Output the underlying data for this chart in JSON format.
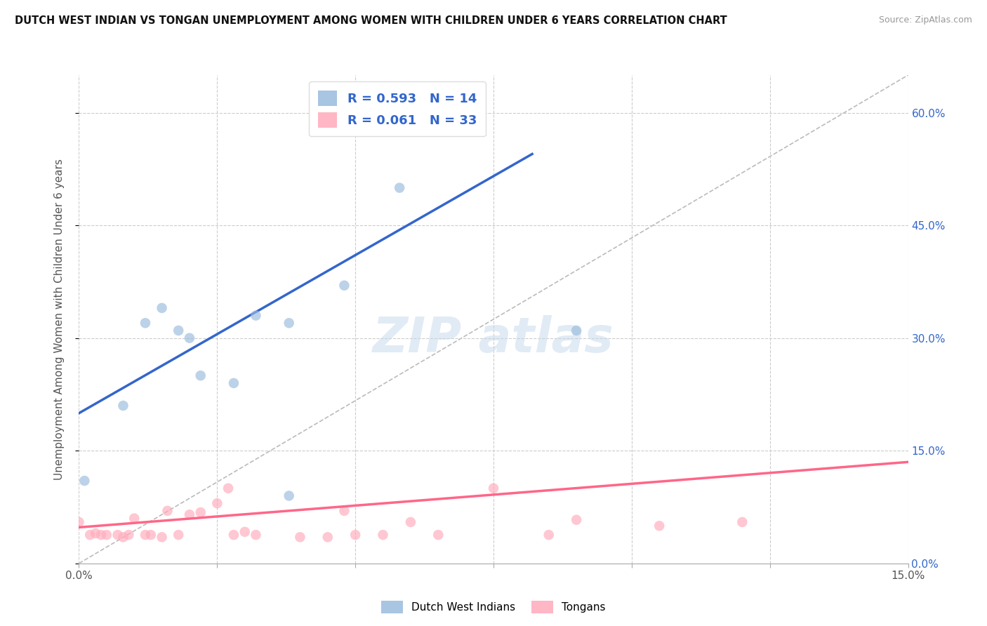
{
  "title": "DUTCH WEST INDIAN VS TONGAN UNEMPLOYMENT AMONG WOMEN WITH CHILDREN UNDER 6 YEARS CORRELATION CHART",
  "source": "Source: ZipAtlas.com",
  "ylabel": "Unemployment Among Women with Children Under 6 years",
  "xlim": [
    0.0,
    0.15
  ],
  "ylim": [
    0.0,
    0.65
  ],
  "xticks": [
    0.0,
    0.025,
    0.05,
    0.075,
    0.1,
    0.125,
    0.15
  ],
  "xtick_labels_bottom": [
    "0.0%",
    "",
    "",
    "",
    "",
    "",
    "15.0%"
  ],
  "yticks": [
    0.0,
    0.15,
    0.3,
    0.45,
    0.6
  ],
  "ytick_labels": [
    "0.0%",
    "15.0%",
    "30.0%",
    "45.0%",
    "60.0%"
  ],
  "blue_color": "#99bbdd",
  "pink_color": "#ffaabb",
  "blue_line_color": "#3366cc",
  "pink_line_color": "#ff6688",
  "grid_color": "#cccccc",
  "R_blue": 0.593,
  "N_blue": 14,
  "R_pink": 0.061,
  "N_pink": 33,
  "legend_label_blue": "Dutch West Indians",
  "legend_label_pink": "Tongans",
  "dutch_x": [
    0.001,
    0.008,
    0.012,
    0.015,
    0.018,
    0.02,
    0.022,
    0.028,
    0.032,
    0.038,
    0.038,
    0.048,
    0.058,
    0.09
  ],
  "dutch_y": [
    0.11,
    0.21,
    0.32,
    0.34,
    0.31,
    0.3,
    0.25,
    0.24,
    0.33,
    0.32,
    0.09,
    0.37,
    0.5,
    0.31
  ],
  "tongan_x": [
    0.0,
    0.002,
    0.003,
    0.004,
    0.005,
    0.007,
    0.008,
    0.009,
    0.01,
    0.012,
    0.013,
    0.015,
    0.016,
    0.018,
    0.02,
    0.022,
    0.025,
    0.027,
    0.028,
    0.03,
    0.032,
    0.04,
    0.045,
    0.048,
    0.05,
    0.055,
    0.06,
    0.065,
    0.075,
    0.085,
    0.09,
    0.105,
    0.12
  ],
  "tongan_y": [
    0.055,
    0.038,
    0.04,
    0.038,
    0.038,
    0.038,
    0.035,
    0.038,
    0.06,
    0.038,
    0.038,
    0.035,
    0.07,
    0.038,
    0.065,
    0.068,
    0.08,
    0.1,
    0.038,
    0.042,
    0.038,
    0.035,
    0.035,
    0.07,
    0.038,
    0.038,
    0.055,
    0.038,
    0.1,
    0.038,
    0.058,
    0.05,
    0.055
  ],
  "blue_trendline_x": [
    0.0,
    0.082
  ],
  "blue_trendline_y": [
    0.2,
    0.545
  ],
  "pink_trendline_x": [
    0.0,
    0.15
  ],
  "pink_trendline_y": [
    0.048,
    0.135
  ],
  "identity_line_x": [
    0.0,
    0.15
  ],
  "identity_line_y": [
    0.0,
    0.65
  ],
  "dot_size": 110,
  "dot_alpha": 0.65
}
